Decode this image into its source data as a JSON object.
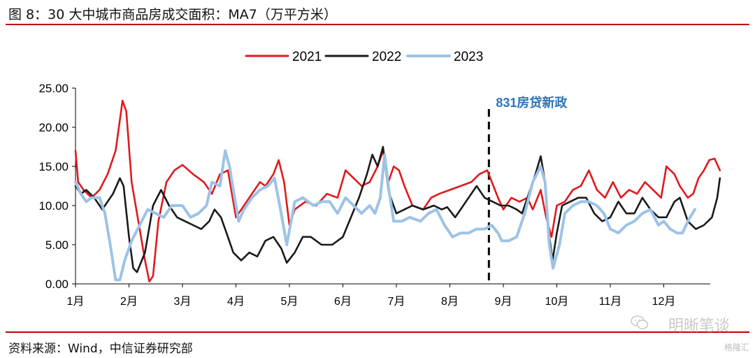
{
  "header": {
    "title": "图 8：30 大中城市商品房成交面积：MA7（万平方米）"
  },
  "footer": {
    "source": "资料来源：Wind，中信证券研究部",
    "watermark": "明晰笔谈",
    "brand": "格隆汇"
  },
  "chart_data": {
    "type": "line",
    "title": "30 大中城市商品房成交面积：MA7（万平方米）",
    "xlabel": "",
    "ylabel": "",
    "x_unit": "month (1 = 1月 start, 13 = end of 12月)",
    "xlim": [
      1,
      13.05
    ],
    "ylim": [
      0,
      25
    ],
    "yticks": [
      "0.00",
      "5.00",
      "10.00",
      "15.00",
      "20.00",
      "25.00"
    ],
    "xtick_labels": [
      "1月",
      "2月",
      "3月",
      "4月",
      "5月",
      "6月",
      "7月",
      "8月",
      "9月",
      "10月",
      "11月",
      "12月"
    ],
    "legend_position": "top",
    "grid": false,
    "annotation": {
      "label": "831房贷新政",
      "x": 8.73,
      "color": "#2e75b6"
    },
    "series": [
      {
        "name": "2021",
        "color": "#e0191e",
        "points": [
          [
            1.0,
            17
          ],
          [
            1.05,
            13
          ],
          [
            1.15,
            12
          ],
          [
            1.3,
            11
          ],
          [
            1.45,
            12
          ],
          [
            1.6,
            14
          ],
          [
            1.75,
            17
          ],
          [
            1.88,
            23.4
          ],
          [
            1.95,
            22
          ],
          [
            2.05,
            13
          ],
          [
            2.2,
            7
          ],
          [
            2.3,
            3
          ],
          [
            2.38,
            0.3
          ],
          [
            2.45,
            1
          ],
          [
            2.55,
            8
          ],
          [
            2.7,
            13
          ],
          [
            2.85,
            14.5
          ],
          [
            3.0,
            15.2
          ],
          [
            3.2,
            14
          ],
          [
            3.4,
            13
          ],
          [
            3.55,
            11.5
          ],
          [
            3.7,
            14
          ],
          [
            3.85,
            14.5
          ],
          [
            4.0,
            8.5
          ],
          [
            4.15,
            10
          ],
          [
            4.3,
            11.5
          ],
          [
            4.45,
            13
          ],
          [
            4.55,
            12.5
          ],
          [
            4.7,
            14
          ],
          [
            4.8,
            15.8
          ],
          [
            4.9,
            13
          ],
          [
            5.0,
            7.5
          ],
          [
            5.1,
            9.5
          ],
          [
            5.3,
            10.5
          ],
          [
            5.5,
            10
          ],
          [
            5.7,
            11.5
          ],
          [
            5.9,
            11
          ],
          [
            6.05,
            14.5
          ],
          [
            6.2,
            13.5
          ],
          [
            6.35,
            12.5
          ],
          [
            6.5,
            13
          ],
          [
            6.65,
            15
          ],
          [
            6.75,
            17
          ],
          [
            6.85,
            13
          ],
          [
            6.95,
            15
          ],
          [
            7.05,
            14.5
          ],
          [
            7.15,
            12.5
          ],
          [
            7.3,
            10
          ],
          [
            7.5,
            9.5
          ],
          [
            7.65,
            11
          ],
          [
            7.8,
            11.5
          ],
          [
            8.0,
            12
          ],
          [
            8.2,
            12.5
          ],
          [
            8.4,
            13
          ],
          [
            8.55,
            14
          ],
          [
            8.7,
            14.5
          ],
          [
            8.9,
            11
          ],
          [
            9.0,
            9.5
          ],
          [
            9.15,
            11
          ],
          [
            9.3,
            10.5
          ],
          [
            9.45,
            11
          ],
          [
            9.55,
            9.5
          ],
          [
            9.7,
            12
          ],
          [
            9.8,
            8.5
          ],
          [
            9.9,
            6
          ],
          [
            10.0,
            10
          ],
          [
            10.15,
            10.5
          ],
          [
            10.3,
            12
          ],
          [
            10.45,
            12.5
          ],
          [
            10.6,
            14.5
          ],
          [
            10.75,
            12
          ],
          [
            10.9,
            11
          ],
          [
            11.05,
            13
          ],
          [
            11.2,
            11
          ],
          [
            11.35,
            12
          ],
          [
            11.5,
            11.5
          ],
          [
            11.65,
            13
          ],
          [
            11.8,
            12
          ],
          [
            11.95,
            11
          ],
          [
            12.05,
            15
          ],
          [
            12.2,
            14
          ],
          [
            12.3,
            12.5
          ],
          [
            12.45,
            11
          ],
          [
            12.55,
            11.5
          ],
          [
            12.65,
            13.5
          ],
          [
            12.75,
            14.5
          ],
          [
            12.85,
            15.8
          ],
          [
            12.95,
            16
          ],
          [
            13.05,
            14.5
          ]
        ]
      },
      {
        "name": "2022",
        "color": "#1a1a1a",
        "points": [
          [
            1.0,
            12.5
          ],
          [
            1.1,
            11.5
          ],
          [
            1.2,
            12
          ],
          [
            1.35,
            11
          ],
          [
            1.5,
            9.5
          ],
          [
            1.6,
            10.5
          ],
          [
            1.7,
            11.5
          ],
          [
            1.83,
            13.5
          ],
          [
            1.9,
            12.5
          ],
          [
            2.0,
            6
          ],
          [
            2.08,
            2
          ],
          [
            2.15,
            1.5
          ],
          [
            2.3,
            4
          ],
          [
            2.45,
            10
          ],
          [
            2.6,
            12
          ],
          [
            2.75,
            10
          ],
          [
            2.9,
            8.5
          ],
          [
            3.05,
            8
          ],
          [
            3.2,
            7.5
          ],
          [
            3.35,
            7
          ],
          [
            3.5,
            8
          ],
          [
            3.6,
            9.5
          ],
          [
            3.72,
            8.5
          ],
          [
            3.85,
            6
          ],
          [
            3.95,
            4
          ],
          [
            4.1,
            3
          ],
          [
            4.25,
            4
          ],
          [
            4.4,
            3.5
          ],
          [
            4.55,
            5.5
          ],
          [
            4.7,
            6
          ],
          [
            4.85,
            4.5
          ],
          [
            4.95,
            2.7
          ],
          [
            5.1,
            4
          ],
          [
            5.25,
            6
          ],
          [
            5.4,
            6
          ],
          [
            5.6,
            5
          ],
          [
            5.8,
            5
          ],
          [
            6.0,
            6
          ],
          [
            6.15,
            8.5
          ],
          [
            6.3,
            11
          ],
          [
            6.45,
            14
          ],
          [
            6.55,
            16.5
          ],
          [
            6.65,
            15
          ],
          [
            6.75,
            17.5
          ],
          [
            6.85,
            12
          ],
          [
            6.92,
            10.5
          ],
          [
            7.0,
            9
          ],
          [
            7.15,
            9.5
          ],
          [
            7.3,
            10
          ],
          [
            7.5,
            9.5
          ],
          [
            7.7,
            10
          ],
          [
            7.85,
            9.5
          ],
          [
            7.95,
            9.8
          ],
          [
            8.1,
            8.5
          ],
          [
            8.2,
            9.5
          ],
          [
            8.35,
            11
          ],
          [
            8.5,
            12.5
          ],
          [
            8.65,
            11
          ],
          [
            8.8,
            10.5
          ],
          [
            8.95,
            10
          ],
          [
            9.1,
            10
          ],
          [
            9.25,
            9.5
          ],
          [
            9.35,
            9
          ],
          [
            9.5,
            12
          ],
          [
            9.6,
            14
          ],
          [
            9.7,
            16.3
          ],
          [
            9.78,
            13
          ],
          [
            9.86,
            6
          ],
          [
            9.92,
            3
          ],
          [
            10.0,
            6.5
          ],
          [
            10.1,
            10
          ],
          [
            10.25,
            10.5
          ],
          [
            10.4,
            11
          ],
          [
            10.55,
            11
          ],
          [
            10.7,
            9
          ],
          [
            10.85,
            8
          ],
          [
            11.0,
            8.5
          ],
          [
            11.15,
            10.5
          ],
          [
            11.3,
            9
          ],
          [
            11.45,
            9
          ],
          [
            11.6,
            11
          ],
          [
            11.75,
            9.5
          ],
          [
            11.9,
            8.5
          ],
          [
            12.05,
            8.5
          ],
          [
            12.2,
            10.5
          ],
          [
            12.3,
            11
          ],
          [
            12.45,
            8
          ],
          [
            12.6,
            7
          ],
          [
            12.75,
            7.5
          ],
          [
            12.9,
            8.5
          ],
          [
            13.0,
            11
          ],
          [
            13.05,
            13.5
          ]
        ]
      },
      {
        "name": "2023",
        "color": "#9dc3e6",
        "points": [
          [
            1.0,
            13
          ],
          [
            1.1,
            11.5
          ],
          [
            1.2,
            10.5
          ],
          [
            1.3,
            11
          ],
          [
            1.45,
            11
          ],
          [
            1.55,
            9
          ],
          [
            1.65,
            5
          ],
          [
            1.75,
            0.5
          ],
          [
            1.83,
            0.5
          ],
          [
            1.92,
            3
          ],
          [
            2.05,
            5.5
          ],
          [
            2.2,
            7.5
          ],
          [
            2.35,
            9.5
          ],
          [
            2.5,
            9
          ],
          [
            2.65,
            8.5
          ],
          [
            2.8,
            10
          ],
          [
            3.0,
            10
          ],
          [
            3.15,
            8.5
          ],
          [
            3.3,
            9
          ],
          [
            3.45,
            10
          ],
          [
            3.55,
            13
          ],
          [
            3.7,
            12.5
          ],
          [
            3.8,
            17
          ],
          [
            3.88,
            15
          ],
          [
            3.95,
            12
          ],
          [
            4.05,
            8
          ],
          [
            4.15,
            9.5
          ],
          [
            4.3,
            11
          ],
          [
            4.45,
            12
          ],
          [
            4.6,
            12.5
          ],
          [
            4.72,
            13.5
          ],
          [
            4.82,
            10
          ],
          [
            4.95,
            5
          ],
          [
            5.1,
            10.5
          ],
          [
            5.25,
            11
          ],
          [
            5.45,
            10
          ],
          [
            5.6,
            10.5
          ],
          [
            5.75,
            10.5
          ],
          [
            5.9,
            9
          ],
          [
            6.05,
            11
          ],
          [
            6.2,
            10
          ],
          [
            6.35,
            9
          ],
          [
            6.5,
            10
          ],
          [
            6.6,
            9
          ],
          [
            6.7,
            11
          ],
          [
            6.78,
            16.5
          ],
          [
            6.86,
            12
          ],
          [
            6.95,
            8
          ],
          [
            7.1,
            8
          ],
          [
            7.25,
            8.5
          ],
          [
            7.45,
            8
          ],
          [
            7.6,
            9
          ],
          [
            7.75,
            9.5
          ],
          [
            7.9,
            7.5
          ],
          [
            8.05,
            6
          ],
          [
            8.2,
            6.5
          ],
          [
            8.35,
            6.5
          ],
          [
            8.5,
            7
          ],
          [
            8.65,
            7
          ],
          [
            8.78,
            7.5
          ],
          [
            8.9,
            6.5
          ],
          [
            8.97,
            5.5
          ],
          [
            9.1,
            5.5
          ],
          [
            9.25,
            6
          ],
          [
            9.4,
            9
          ],
          [
            9.55,
            13
          ],
          [
            9.7,
            15
          ],
          [
            9.78,
            13
          ],
          [
            9.86,
            5
          ],
          [
            9.93,
            2
          ],
          [
            10.05,
            5
          ],
          [
            10.15,
            9
          ],
          [
            10.3,
            10
          ],
          [
            10.45,
            10.5
          ],
          [
            10.6,
            10.5
          ],
          [
            10.75,
            10
          ],
          [
            10.88,
            9
          ],
          [
            11.0,
            7
          ],
          [
            11.15,
            6.5
          ],
          [
            11.3,
            7.5
          ],
          [
            11.45,
            8
          ],
          [
            11.6,
            9
          ],
          [
            11.75,
            9.5
          ],
          [
            11.9,
            7.5
          ],
          [
            12.0,
            8
          ],
          [
            12.12,
            7
          ],
          [
            12.25,
            6.5
          ],
          [
            12.35,
            6.5
          ],
          [
            12.45,
            8
          ],
          [
            12.58,
            9.5
          ]
        ]
      }
    ]
  }
}
